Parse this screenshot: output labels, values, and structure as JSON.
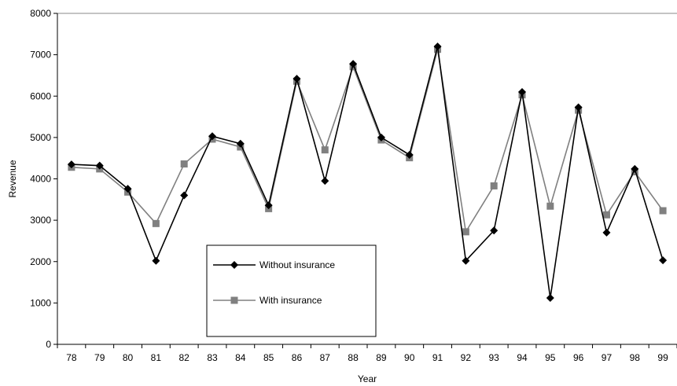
{
  "chart_data": {
    "type": "line",
    "xlabel": "Year",
    "ylabel": "Revenue",
    "ylim": [
      0,
      8000
    ],
    "yticks": [
      0,
      1000,
      2000,
      3000,
      4000,
      5000,
      6000,
      7000,
      8000
    ],
    "categories": [
      "78",
      "79",
      "80",
      "81",
      "82",
      "83",
      "84",
      "85",
      "86",
      "87",
      "88",
      "89",
      "90",
      "91",
      "92",
      "93",
      "94",
      "95",
      "96",
      "97",
      "98",
      "99"
    ],
    "legend_position": "center-left",
    "grid": false,
    "series": [
      {
        "name": "Without insurance",
        "color": "#000000",
        "marker": "diamond",
        "values": [
          4350,
          4320,
          3760,
          2020,
          3600,
          5030,
          4850,
          3360,
          6420,
          3950,
          6780,
          5000,
          4580,
          7200,
          2020,
          2750,
          6100,
          1120,
          5730,
          2700,
          4240,
          2030
        ]
      },
      {
        "name": "With insurance",
        "color": "#808080",
        "marker": "square",
        "values": [
          4280,
          4240,
          3680,
          2920,
          4360,
          4960,
          4770,
          3280,
          6360,
          4700,
          6710,
          4940,
          4510,
          7130,
          2720,
          3830,
          6030,
          3340,
          5660,
          3130,
          4170,
          3230
        ]
      }
    ]
  }
}
